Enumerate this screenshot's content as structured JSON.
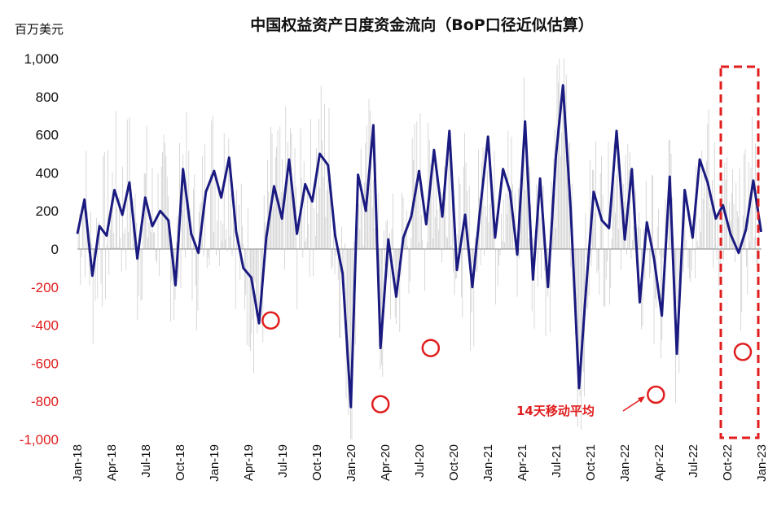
{
  "chart_data": {
    "type": "line",
    "title": "中国权益资产日度资金流向（BoP口径近似估算）",
    "unit_label": "百万美元",
    "ylim": [
      -1000,
      1000
    ],
    "yticks": [
      "1,000",
      "800",
      "600",
      "400",
      "200",
      "0",
      "-200",
      "-400",
      "-600",
      "-800",
      "-1,000"
    ],
    "ytick_values": [
      1000,
      800,
      600,
      400,
      200,
      0,
      -200,
      -400,
      -600,
      -800,
      -1000
    ],
    "xticks": [
      "Jan-18",
      "Apr-18",
      "Jul-18",
      "Oct-18",
      "Jan-19",
      "Apr-19",
      "Jul-19",
      "Oct-19",
      "Jan-20",
      "Apr-20",
      "Jul-20",
      "Oct-20",
      "Jan-21",
      "Apr-21",
      "Jul-21",
      "Oct-21",
      "Jan-22",
      "Apr-22",
      "Jul-22",
      "Oct-22",
      "Jan-23"
    ],
    "annotation": "14天移动平均",
    "colors": {
      "ma_line": "#1a1a80",
      "daily_bars": "#c8c8c8",
      "highlight": "#e11d1d",
      "negative_tick": "#e11d1d"
    },
    "series": [
      {
        "style": "thin-gray-daily-bars",
        "note_values_in": "million USD"
      },
      {
        "style": "navy-line",
        "x": [
          "2018-01-01",
          "2018-01-20",
          "2018-02-10",
          "2018-03-01",
          "2018-03-20",
          "2018-04-10",
          "2018-05-01",
          "2018-05-20",
          "2018-06-10",
          "2018-07-01",
          "2018-07-20",
          "2018-08-10",
          "2018-09-01",
          "2018-09-20",
          "2018-10-10",
          "2018-11-01",
          "2018-11-20",
          "2018-12-10",
          "2019-01-01",
          "2019-01-20",
          "2019-02-10",
          "2019-03-01",
          "2019-03-20",
          "2019-04-10",
          "2019-05-01",
          "2019-05-20",
          "2019-06-10",
          "2019-07-01",
          "2019-07-20",
          "2019-08-10",
          "2019-09-01",
          "2019-09-20",
          "2019-10-10",
          "2019-11-01",
          "2019-11-20",
          "2019-12-10",
          "2020-01-01",
          "2020-01-20",
          "2020-02-10",
          "2020-03-01",
          "2020-03-20",
          "2020-04-10",
          "2020-05-01",
          "2020-05-20",
          "2020-06-10",
          "2020-07-01",
          "2020-07-20",
          "2020-08-10",
          "2020-09-01",
          "2020-09-20",
          "2020-10-10",
          "2020-11-01",
          "2020-11-20",
          "2020-12-10",
          "2021-01-01",
          "2021-01-20",
          "2021-02-10",
          "2021-03-01",
          "2021-03-20",
          "2021-04-10",
          "2021-05-01",
          "2021-05-20",
          "2021-06-10",
          "2021-07-01",
          "2021-07-20",
          "2021-08-10",
          "2021-09-01",
          "2021-09-20",
          "2021-10-10",
          "2021-11-01",
          "2021-11-20",
          "2021-12-10",
          "2022-01-01",
          "2022-01-20",
          "2022-02-10",
          "2022-03-01",
          "2022-03-20",
          "2022-04-10",
          "2022-05-01",
          "2022-05-20",
          "2022-06-10",
          "2022-07-01",
          "2022-07-20",
          "2022-08-10",
          "2022-09-01",
          "2022-09-20",
          "2022-10-10",
          "2022-11-01",
          "2022-11-20",
          "2022-12-10",
          "2022-12-31"
        ],
        "values": [
          80,
          260,
          -140,
          120,
          70,
          310,
          180,
          350,
          -50,
          270,
          120,
          200,
          150,
          -190,
          420,
          80,
          -20,
          300,
          410,
          270,
          480,
          90,
          -100,
          -150,
          -390,
          60,
          330,
          160,
          470,
          80,
          340,
          250,
          500,
          440,
          70,
          -130,
          -830,
          390,
          200,
          650,
          -520,
          50,
          -250,
          60,
          170,
          410,
          130,
          520,
          170,
          620,
          -110,
          180,
          -200,
          190,
          590,
          60,
          420,
          300,
          -30,
          670,
          -160,
          370,
          -200,
          480,
          860,
          200,
          -730,
          -200,
          300,
          150,
          110,
          620,
          50,
          420,
          -280,
          140,
          -50,
          -350,
          380,
          -550,
          310,
          60,
          470,
          350,
          160,
          230,
          80,
          -20,
          100,
          360,
          90
        ]
      }
    ],
    "highlight_marks": [
      {
        "date": "2019-06-01",
        "value": -375
      },
      {
        "date": "2020-03-20",
        "value": -815
      },
      {
        "date": "2020-08-01",
        "value": -520
      },
      {
        "date": "2022-03-25",
        "value": -765
      },
      {
        "date": "2022-11-12",
        "value": -540
      }
    ]
  }
}
